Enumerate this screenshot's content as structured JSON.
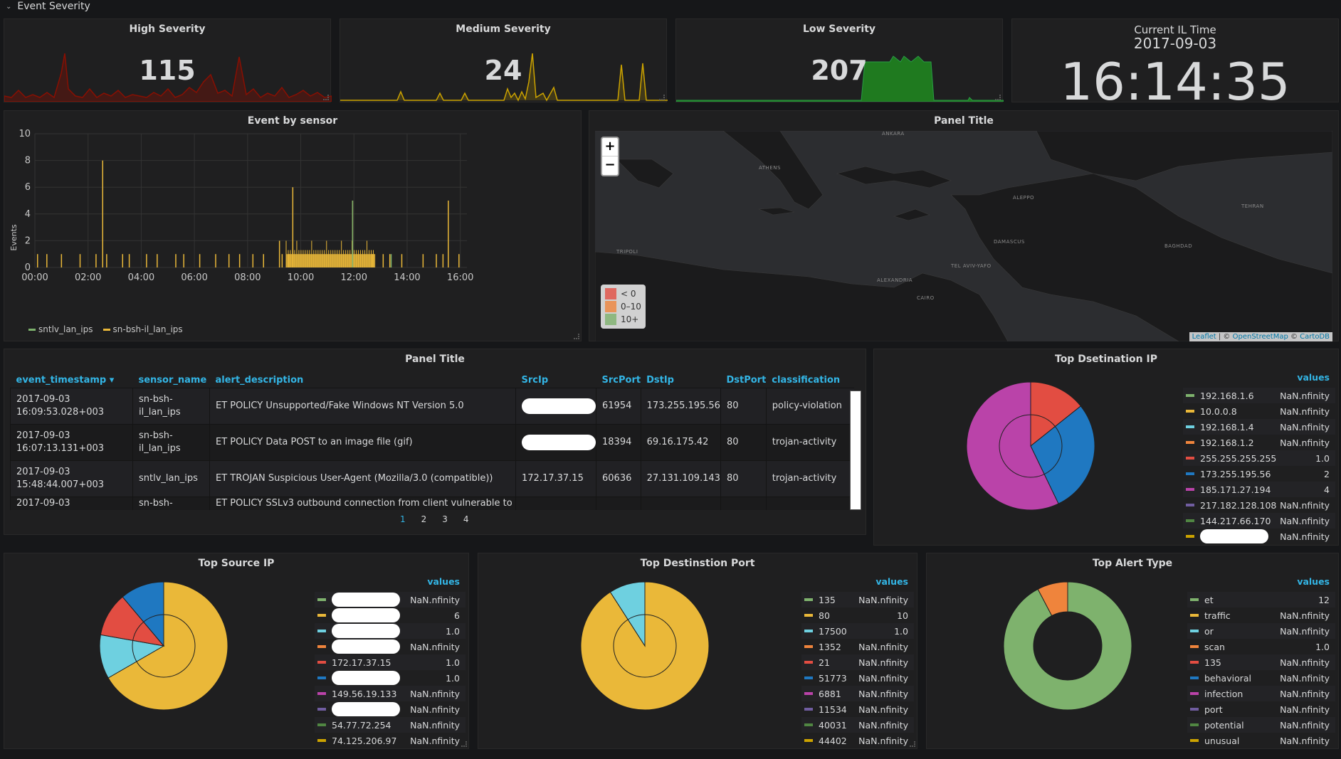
{
  "row": {
    "title": "Event Severity"
  },
  "stats": {
    "high": {
      "title": "High Severity",
      "value": "115",
      "color": "#890f02"
    },
    "medium": {
      "title": "Medium Severity",
      "value": "24",
      "color": "#cca300"
    },
    "low": {
      "title": "Low Severity",
      "value": "207",
      "color": "#1f7a1f"
    }
  },
  "clock": {
    "title": "Current IL Time",
    "date": "2017-09-03",
    "time": "16:14:35"
  },
  "event_chart": {
    "title": "Event by sensor",
    "ylabel": "Events",
    "legend": [
      {
        "name": "sntlv_lan_ips",
        "color": "#7eb26d"
      },
      {
        "name": "sn-bsh-il_lan_ips",
        "color": "#eab839"
      }
    ]
  },
  "chart_data": {
    "type": "bar",
    "title": "Event by sensor",
    "ylabel": "Events",
    "xlabel": "",
    "ylim": [
      0,
      10
    ],
    "y_ticks": [
      "0",
      "2",
      "4",
      "6",
      "8",
      "10"
    ],
    "x_ticks": [
      "00:00",
      "02:00",
      "04:00",
      "06:00",
      "08:00",
      "10:00",
      "12:00",
      "14:00",
      "16:00"
    ],
    "x_range_hours": [
      0,
      16.25
    ],
    "series": [
      {
        "name": "sn-bsh-il_lan_ips",
        "color": "#eab839",
        "x_hours": [
          0.1,
          0.45,
          1.0,
          1.7,
          2.3,
          2.55,
          2.7,
          3.3,
          3.55,
          4.2,
          4.6,
          5.3,
          5.6,
          6.2,
          6.8,
          7.3,
          7.7,
          8.2,
          8.6,
          9.2,
          9.3,
          9.55,
          9.7,
          11.95,
          12.7,
          13.1,
          13.35,
          13.8,
          14.6,
          15.1,
          15.35,
          15.55,
          15.95
        ],
        "values": [
          1,
          1,
          1,
          1,
          1,
          8,
          1,
          1,
          1,
          1,
          1,
          1,
          1,
          1,
          1,
          1,
          1,
          1,
          1,
          2,
          1,
          1,
          6,
          5,
          1,
          1,
          1,
          1,
          1,
          1,
          1,
          5,
          1
        ],
        "dense_block_hours": [
          9.45,
          12.8
        ],
        "dense_block_value": 1
      },
      {
        "name": "sntlv_lan_ips",
        "color": "#7eb26d",
        "x_hours": [
          11.95,
          13.4
        ],
        "values": [
          5,
          1
        ]
      }
    ]
  },
  "map": {
    "title": "Panel Title",
    "zoom_in": "+",
    "zoom_out": "−",
    "legend": [
      {
        "label": "< 0",
        "color": "#e24d42"
      },
      {
        "label": "0–10",
        "color": "#ef843c"
      },
      {
        "label": "10+",
        "color": "#7eb26d"
      }
    ],
    "attribution": {
      "leaflet": "Leaflet",
      "sep": " | © ",
      "osm": "OpenStreetMap",
      "sep2": " © ",
      "carto": "CartoDB"
    },
    "cities": [
      "ANKARA",
      "ATHENS",
      "ALEPPO",
      "TEHRAN",
      "TRIPOLI",
      "DAMASCUS",
      "BAGHDAD",
      "TEL AVIV-YAFO",
      "ALEXANDRIA",
      "CAIRO"
    ]
  },
  "table": {
    "title": "Panel Title",
    "columns": [
      "event_timestamp",
      "sensor_name",
      "alert_description",
      "SrcIp",
      "SrcPort",
      "DstIp",
      "DstPort",
      "classification"
    ],
    "sort_indicator": "▾",
    "rows": [
      {
        "ts1": "2017-09-03",
        "ts2": "16:09:53.028+003",
        "s1": "sn-bsh-",
        "s2": "il_lan_ips",
        "desc": "ET POLICY Unsupported/Fake Windows NT Version 5.0",
        "src": "",
        "sport": "61954",
        "dst": "173.255.195.56",
        "dport": "80",
        "cls": "policy-violation"
      },
      {
        "ts1": "2017-09-03",
        "ts2": "16:07:13.131+003",
        "s1": "sn-bsh-",
        "s2": "il_lan_ips",
        "desc": "ET POLICY Data POST to an image file (gif)",
        "src": "",
        "sport": "18394",
        "dst": "69.16.175.42",
        "dport": "80",
        "cls": "trojan-activity"
      },
      {
        "ts1": "2017-09-03",
        "ts2": "15:48:44.007+003",
        "s1": "sntlv_lan_ips",
        "s2": "",
        "desc": "ET TROJAN Suspicious User-Agent (Mozilla/3.0 (compatible))",
        "src": "172.17.37.15",
        "sport": "60636",
        "dst": "27.131.109.143",
        "dport": "80",
        "cls": "trojan-activity"
      },
      {
        "ts1": "2017-09-03",
        "ts2": "",
        "s1": "sn-bsh-",
        "s2": "",
        "desc": "ET POLICY SSLv3 outbound connection from client vulnerable to",
        "src": "",
        "sport": "",
        "dst": "",
        "dport": "",
        "cls": ""
      }
    ],
    "pages": [
      "1",
      "2",
      "3",
      "4"
    ]
  },
  "dest_ip": {
    "title": "Top Dsetination IP",
    "values_header": "values",
    "items": [
      {
        "label": "192.168.1.6",
        "value": "NaN.nfinity",
        "color": "#7eb26d"
      },
      {
        "label": "10.0.0.8",
        "value": "NaN.nfinity",
        "color": "#eab839"
      },
      {
        "label": "192.168.1.4",
        "value": "NaN.nfinity",
        "color": "#6ed0e0"
      },
      {
        "label": "192.168.1.2",
        "value": "NaN.nfinity",
        "color": "#ef843c"
      },
      {
        "label": "255.255.255.255",
        "value": "1.0",
        "color": "#e24d42"
      },
      {
        "label": "173.255.195.56",
        "value": "2",
        "color": "#1f78c1"
      },
      {
        "label": "185.171.27.194",
        "value": "4",
        "color": "#ba43a9"
      },
      {
        "label": "217.182.128.108",
        "value": "NaN.nfinity",
        "color": "#705da0"
      },
      {
        "label": "144.217.66.170",
        "value": "NaN.nfinity",
        "color": "#508642"
      },
      {
        "label": "",
        "value": "NaN.nfinity",
        "color": "#cca300"
      }
    ],
    "slices": [
      {
        "name": "255.255.255.255",
        "value": 1.0,
        "color": "#e24d42"
      },
      {
        "name": "173.255.195.56",
        "value": 2,
        "color": "#1f78c1"
      },
      {
        "name": "185.171.27.194",
        "value": 4,
        "color": "#ba43a9"
      }
    ]
  },
  "source_ip": {
    "title": "Top Source IP",
    "values_header": "values",
    "items": [
      {
        "label": "",
        "value": "NaN.nfinity",
        "color": "#7eb26d"
      },
      {
        "label": "",
        "value": "6",
        "color": "#eab839"
      },
      {
        "label": "",
        "value": "1.0",
        "color": "#6ed0e0"
      },
      {
        "label": "",
        "value": "NaN.nfinity",
        "color": "#ef843c"
      },
      {
        "label": "172.17.37.15",
        "value": "1.0",
        "color": "#e24d42"
      },
      {
        "label": "",
        "value": "1.0",
        "color": "#1f78c1"
      },
      {
        "label": "149.56.19.133",
        "value": "NaN.nfinity",
        "color": "#ba43a9"
      },
      {
        "label": "",
        "value": "NaN.nfinity",
        "color": "#705da0"
      },
      {
        "label": "54.77.72.254",
        "value": "NaN.nfinity",
        "color": "#508642"
      },
      {
        "label": "74.125.206.97",
        "value": "NaN.nfinity",
        "color": "#cca300"
      }
    ],
    "slices": [
      {
        "name": "yellow",
        "value": 6,
        "color": "#eab839"
      },
      {
        "name": "cyan",
        "value": 1.0,
        "color": "#6ed0e0"
      },
      {
        "name": "172.17.37.15",
        "value": 1.0,
        "color": "#e24d42"
      },
      {
        "name": "blue",
        "value": 1.0,
        "color": "#1f78c1"
      }
    ]
  },
  "dest_port": {
    "title": "Top Destinstion Port",
    "values_header": "values",
    "items": [
      {
        "label": "135",
        "value": "NaN.nfinity",
        "color": "#7eb26d"
      },
      {
        "label": "80",
        "value": "10",
        "color": "#eab839"
      },
      {
        "label": "17500",
        "value": "1.0",
        "color": "#6ed0e0"
      },
      {
        "label": "1352",
        "value": "NaN.nfinity",
        "color": "#ef843c"
      },
      {
        "label": "21",
        "value": "NaN.nfinity",
        "color": "#e24d42"
      },
      {
        "label": "51773",
        "value": "NaN.nfinity",
        "color": "#1f78c1"
      },
      {
        "label": "6881",
        "value": "NaN.nfinity",
        "color": "#ba43a9"
      },
      {
        "label": "11534",
        "value": "NaN.nfinity",
        "color": "#705da0"
      },
      {
        "label": "40031",
        "value": "NaN.nfinity",
        "color": "#508642"
      },
      {
        "label": "44402",
        "value": "NaN.nfinity",
        "color": "#cca300"
      }
    ],
    "slices": [
      {
        "name": "80",
        "value": 10,
        "color": "#eab839"
      },
      {
        "name": "17500",
        "value": 1.0,
        "color": "#6ed0e0"
      }
    ]
  },
  "alert_type": {
    "title": "Top Alert Type",
    "values_header": "values",
    "items": [
      {
        "label": "et",
        "value": "12",
        "color": "#7eb26d"
      },
      {
        "label": "traffic",
        "value": "NaN.nfinity",
        "color": "#eab839"
      },
      {
        "label": "or",
        "value": "NaN.nfinity",
        "color": "#6ed0e0"
      },
      {
        "label": "scan",
        "value": "1.0",
        "color": "#ef843c"
      },
      {
        "label": "135",
        "value": "NaN.nfinity",
        "color": "#e24d42"
      },
      {
        "label": "behavioral",
        "value": "NaN.nfinity",
        "color": "#1f78c1"
      },
      {
        "label": "infection",
        "value": "NaN.nfinity",
        "color": "#ba43a9"
      },
      {
        "label": "port",
        "value": "NaN.nfinity",
        "color": "#705da0"
      },
      {
        "label": "potential",
        "value": "NaN.nfinity",
        "color": "#508642"
      },
      {
        "label": "unusual",
        "value": "NaN.nfinity",
        "color": "#cca300"
      }
    ],
    "slices": [
      {
        "name": "et",
        "value": 12,
        "color": "#7eb26d"
      },
      {
        "name": "scan",
        "value": 1.0,
        "color": "#ef843c"
      }
    ]
  }
}
